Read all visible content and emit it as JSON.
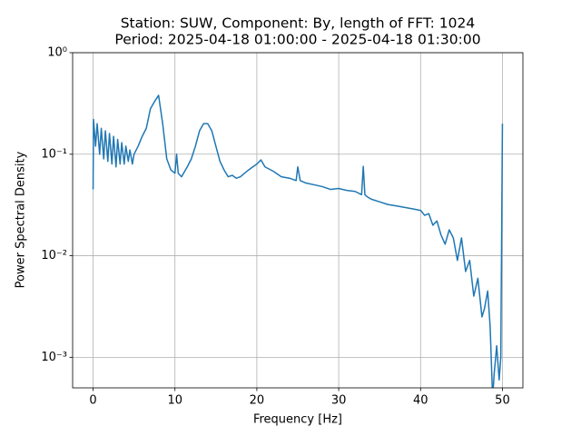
{
  "chart_data": {
    "type": "line",
    "title": [
      "Station: SUW, Component: By, length of FFT: 1024",
      "Period: 2025-04-18 01:00:00 - 2025-04-18 01:30:00"
    ],
    "xlabel": "Frequency [Hz]",
    "ylabel": "Power Spectral Density",
    "xlim": [
      -2.5,
      52.5
    ],
    "xticks": [
      0,
      10,
      20,
      30,
      40,
      50
    ],
    "ylim": [
      0.0005,
      1
    ],
    "yscale": "log",
    "yticks": [
      {
        "value": 1,
        "label": "10⁰"
      },
      {
        "value": 0.1,
        "label": "10⁻¹"
      },
      {
        "value": 0.01,
        "label": "10⁻²"
      },
      {
        "value": 0.001,
        "label": "10⁻³"
      }
    ],
    "grid": true,
    "series": [
      {
        "color": "#1f77b4",
        "x": [
          0,
          0.05,
          0.3,
          0.5,
          0.8,
          1.0,
          1.3,
          1.5,
          1.8,
          2.0,
          2.3,
          2.5,
          2.8,
          3.0,
          3.3,
          3.5,
          3.8,
          4.0,
          4.3,
          4.5,
          4.8,
          5.0,
          5.5,
          6.0,
          6.5,
          7.0,
          7.5,
          8.0,
          8.5,
          9.0,
          9.5,
          10.0,
          10.2,
          10.4,
          10.8,
          11.5,
          12,
          12.5,
          13,
          13.5,
          14,
          14.5,
          15,
          15.5,
          16,
          16.5,
          17,
          17.5,
          18,
          18.5,
          19,
          19.5,
          20,
          20.5,
          21,
          22,
          23,
          24,
          24.8,
          25,
          25.3,
          26,
          27,
          28,
          29,
          30,
          31,
          32,
          32.8,
          33,
          33.2,
          33.5,
          34,
          35,
          36,
          37,
          38,
          39,
          40,
          40.5,
          41,
          41.5,
          42,
          42.5,
          43,
          43.5,
          44,
          44.5,
          45,
          45.5,
          46,
          46.5,
          47,
          47.5,
          47.8,
          48.2,
          48.5,
          48.8,
          49,
          49.3,
          49.6,
          49.8,
          50
        ],
        "values": [
          0.045,
          0.22,
          0.12,
          0.2,
          0.1,
          0.18,
          0.09,
          0.17,
          0.085,
          0.16,
          0.08,
          0.15,
          0.075,
          0.14,
          0.08,
          0.13,
          0.08,
          0.12,
          0.085,
          0.11,
          0.08,
          0.1,
          0.12,
          0.15,
          0.18,
          0.28,
          0.33,
          0.38,
          0.2,
          0.09,
          0.07,
          0.065,
          0.1,
          0.065,
          0.06,
          0.075,
          0.09,
          0.12,
          0.17,
          0.2,
          0.2,
          0.17,
          0.12,
          0.085,
          0.07,
          0.06,
          0.062,
          0.058,
          0.06,
          0.065,
          0.07,
          0.075,
          0.08,
          0.088,
          0.075,
          0.068,
          0.06,
          0.058,
          0.055,
          0.075,
          0.055,
          0.052,
          0.05,
          0.048,
          0.045,
          0.046,
          0.044,
          0.043,
          0.04,
          0.076,
          0.04,
          0.038,
          0.036,
          0.034,
          0.032,
          0.031,
          0.03,
          0.029,
          0.028,
          0.025,
          0.026,
          0.02,
          0.022,
          0.016,
          0.013,
          0.018,
          0.015,
          0.009,
          0.015,
          0.007,
          0.009,
          0.004,
          0.006,
          0.0025,
          0.003,
          0.0045,
          0.002,
          0.0004,
          0.0007,
          0.0013,
          0.0006,
          0.001,
          0.2
        ]
      }
    ]
  }
}
